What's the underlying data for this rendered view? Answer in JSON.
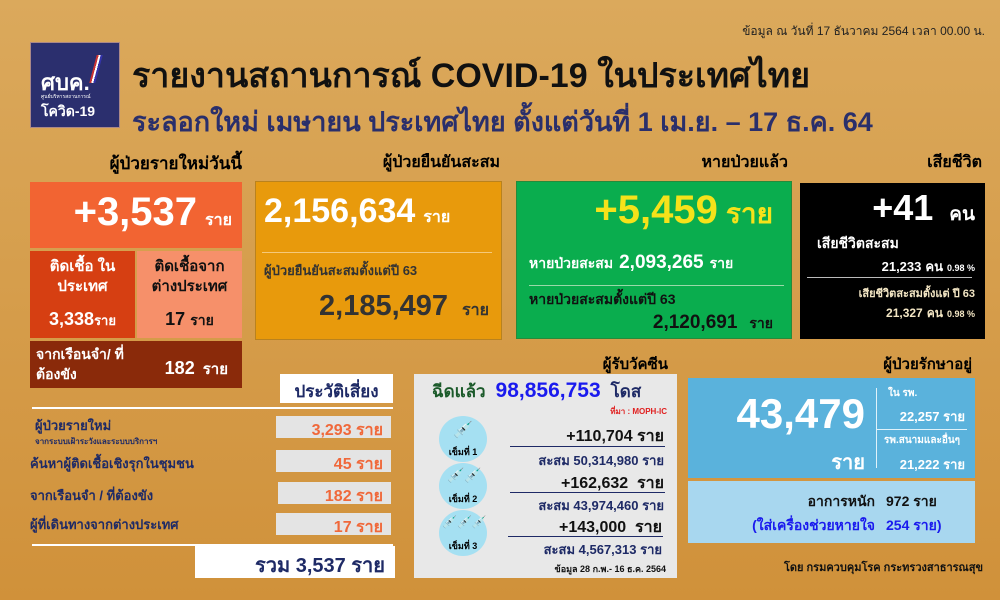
{
  "header": {
    "date": "ข้อมูล ณ วันที่ 17 ธันวาคม 2564 เวลา 00.00 น.",
    "title": "รายงานสถานการณ์ COVID-19 ในประเทศไทย",
    "subtitle": "ระลอกใหม่ เมษายน ประเทศไทย ตั้งแต่วันที่ 1 เม.ย. – 17 ธ.ค. 64",
    "logo": {
      "main": "ศบค.",
      "sub": "ศูนย์บริหารสถานการณ์",
      "name": "โควิด-19"
    }
  },
  "new_cases": {
    "heading": "ผู้ป่วยรายใหม่วันนี้",
    "total": "+3,537",
    "unit": "ราย",
    "domestic_label": "ติดเชื้อ ในประเทศ",
    "domestic": "3,338",
    "imported_label": "ติดเชื้อจาก ต่างประเทศ",
    "imported": "17",
    "prison_label": "จากเรือนจำ/ ที่ต้องขัง",
    "prison": "182"
  },
  "confirmed": {
    "heading": "ผู้ป่วยยืนยันสะสม",
    "total": "2,156,634",
    "unit": "ราย",
    "since63_label": "ผู้ป่วยยืนยันสะสมตั้งแต่ปี 63",
    "since63": "2,185,497"
  },
  "recovered": {
    "heading": "หายป่วยแล้ว",
    "today": "+5,459",
    "unit": "ราย",
    "cum_label": "หายป่วยสะสม",
    "cum": "2,093,265",
    "since63_label": "หายป่วยสะสมตั้งแต่ปี 63",
    "since63": "2,120,691"
  },
  "deaths": {
    "heading": "เสียชีวิต",
    "today": "+41",
    "unit": "คน",
    "cum_label": "เสียชีวิตสะสม",
    "cum": "21,233",
    "cum_pct": "0.98 %",
    "since63_label": "เสียชีวิตสะสมตั้งแต่ ปี 63",
    "since63": "21,327",
    "since63_pct": "0.98 %"
  },
  "risk": {
    "heading": "ประวัติเสี่ยง",
    "rows": [
      {
        "label": "ผู้ป่วยรายใหม่",
        "sublabel": "จากระบบเฝ้าระวังและระบบบริการฯ",
        "value": "3,293 ราย"
      },
      {
        "label": "ค้นหาผู้ติดเชื้อเชิงรุกในชุมชน",
        "value": "45 ราย"
      },
      {
        "label": "จากเรือนจำ / ที่ต้องขัง",
        "value": "182 ราย"
      },
      {
        "label": "ผู้ที่เดินทางจากต่างประเทศ",
        "value": "17 ราย"
      }
    ],
    "total": "รวม 3,537 ราย"
  },
  "vaccine": {
    "heading": "ผู้รับวัคซีน",
    "label": "ฉีดแล้ว",
    "total": "98,856,753",
    "unit": "โดส",
    "source": "ที่มา : MOPH-IC",
    "doses": [
      {
        "label": "เข็มที่ 1",
        "today": "+110,704 ราย",
        "cum": "สะสม 50,314,980 ราย"
      },
      {
        "label": "เข็มที่ 2",
        "today": "+162,632  ราย",
        "cum": "สะสม 43,974,460 ราย"
      },
      {
        "label": "เข็มที่ 3",
        "today": "+143,000  ราย",
        "cum": "สะสม 4,567,313 ราย"
      }
    ],
    "note": "ข้อมูล 28 ก.พ.- 16 ธ.ค. 2564"
  },
  "hospital": {
    "heading": "ผู้ป่วยรักษาอยู่",
    "total": "43,479",
    "unit": "ราย",
    "in_hosp_label": "ใน รพ.",
    "in_hosp": "22,257 ราย",
    "field_label": "รพ.สนามและอื่นๆ",
    "field": "21,222 ราย",
    "severe_label": "อาการหนัก",
    "severe": "972 ราย",
    "vent_label": "(ใส่เครื่องช่วยหายใจ",
    "vent": "254 ราย)"
  },
  "footer": "โดย กรมควบคุมโรค กระทรวงสาธารณสุข"
}
